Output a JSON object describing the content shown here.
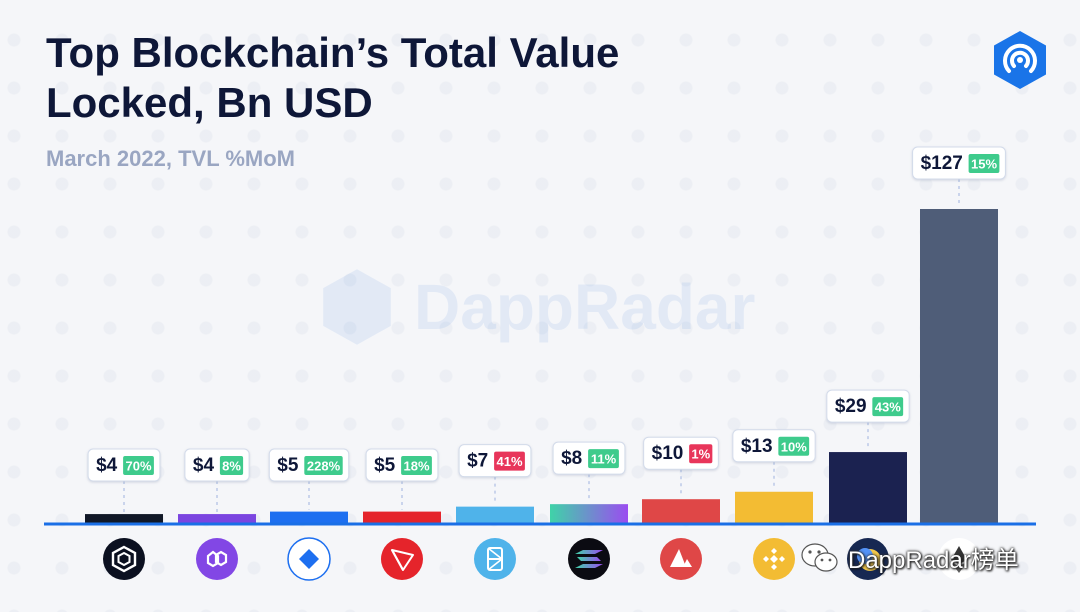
{
  "header": {
    "title": "Top Blockchain’s Total Value\nLocked, Bn USD",
    "subtitle": "March 2022, TVL %MoM"
  },
  "brand": {
    "logo_icon": "dappradar-logo-icon",
    "watermark_text": "DappRadar",
    "overlay_text": "DappRadar榜单",
    "overlay_icon": "wechat-icon"
  },
  "colors": {
    "positive": "#3ecb8c",
    "negative": "#e8355a",
    "baseline": "#1a6fe6",
    "title": "#0e1738"
  },
  "chart_data": {
    "type": "bar",
    "title": "Top Blockchain’s Total Value Locked, Bn USD",
    "subtitle": "March 2022, TVL %MoM",
    "categories": [
      "",
      "",
      "",
      "",
      "",
      "",
      "",
      "",
      "",
      ""
    ],
    "values": [
      4,
      4,
      5,
      5,
      7,
      8,
      10,
      13,
      29,
      127
    ],
    "value_labels": [
      "$4",
      "$4",
      "$5",
      "$5",
      "$7",
      "$8",
      "$10",
      "$13",
      "$29",
      "$127"
    ],
    "mom_change": [
      "70%",
      "8%",
      "228%",
      "18%",
      "41%",
      "11%",
      "1%",
      "10%",
      "43%",
      "15%"
    ],
    "mom_direction": [
      "up",
      "up",
      "up",
      "up",
      "down",
      "up",
      "down",
      "up",
      "up",
      "up"
    ],
    "bar_colors": [
      "#111827",
      "#7b45e0",
      "#1d6ff0",
      "#e5242b",
      "#4fb3ea",
      "solana-gradient",
      "#df4747",
      "#f3bc33",
      "#1b2250",
      "#4f5d78"
    ],
    "chain_icons": [
      "cronos-icon",
      "polygon-icon",
      "near-icon",
      "tron-icon",
      "fantom-icon",
      "solana-icon",
      "avalanche-icon",
      "binance-icon",
      "terra-icon",
      "ethereum-icon"
    ],
    "ylim": [
      0,
      127
    ],
    "xlabel": "",
    "ylabel": "",
    "grid": false,
    "legend": "none"
  }
}
